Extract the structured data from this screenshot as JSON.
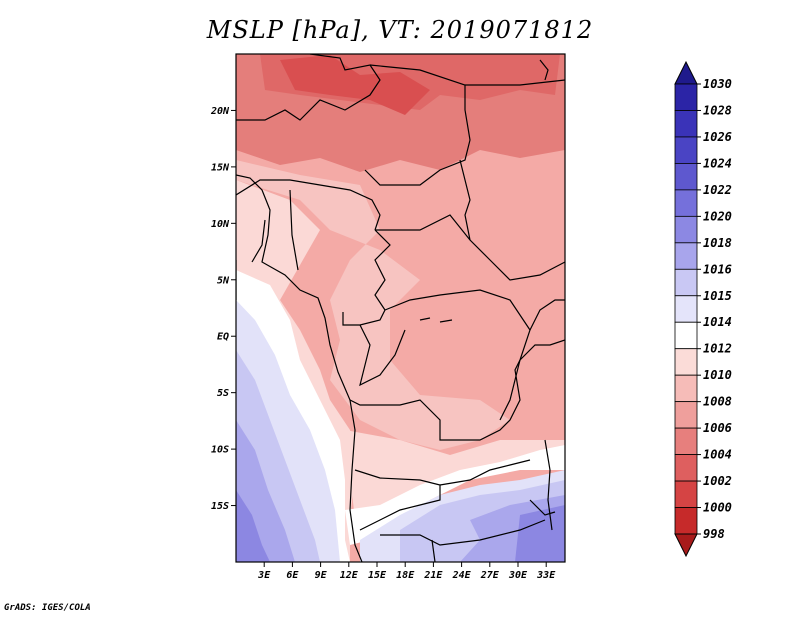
{
  "title": "MSLP [hPa], VT: 2019071812",
  "credit": "GrADS: IGES/COLA",
  "map": {
    "lon_range": [
      0,
      35
    ],
    "lat_range": [
      -20,
      25
    ],
    "lat_ticks": [
      "20N",
      "15N",
      "10N",
      "5N",
      "EQ",
      "5S",
      "10S",
      "15S"
    ],
    "lon_ticks": [
      "3E",
      "6E",
      "9E",
      "12E",
      "15E",
      "18E",
      "21E",
      "24E",
      "27E",
      "30E",
      "33E"
    ]
  },
  "colorbar": {
    "labels": [
      "1030",
      "1028",
      "1026",
      "1024",
      "1022",
      "1020",
      "1018",
      "1016",
      "1015",
      "1014",
      "1012",
      "1010",
      "1008",
      "1006",
      "1004",
      "1002",
      "1000",
      "998"
    ],
    "colors": [
      "#1f1a8c",
      "#2b24a6",
      "#3a33b8",
      "#4a44c4",
      "#5e58cf",
      "#7570db",
      "#8c88e3",
      "#a8a5ec",
      "#c9c8f4",
      "#e4e4fa",
      "#ffffff",
      "#fbdcd8",
      "#f6bcb8",
      "#ef9f9c",
      "#e77f7d",
      "#de5f5f",
      "#d54444",
      "#c62a2a",
      "#a81b1b"
    ]
  }
}
